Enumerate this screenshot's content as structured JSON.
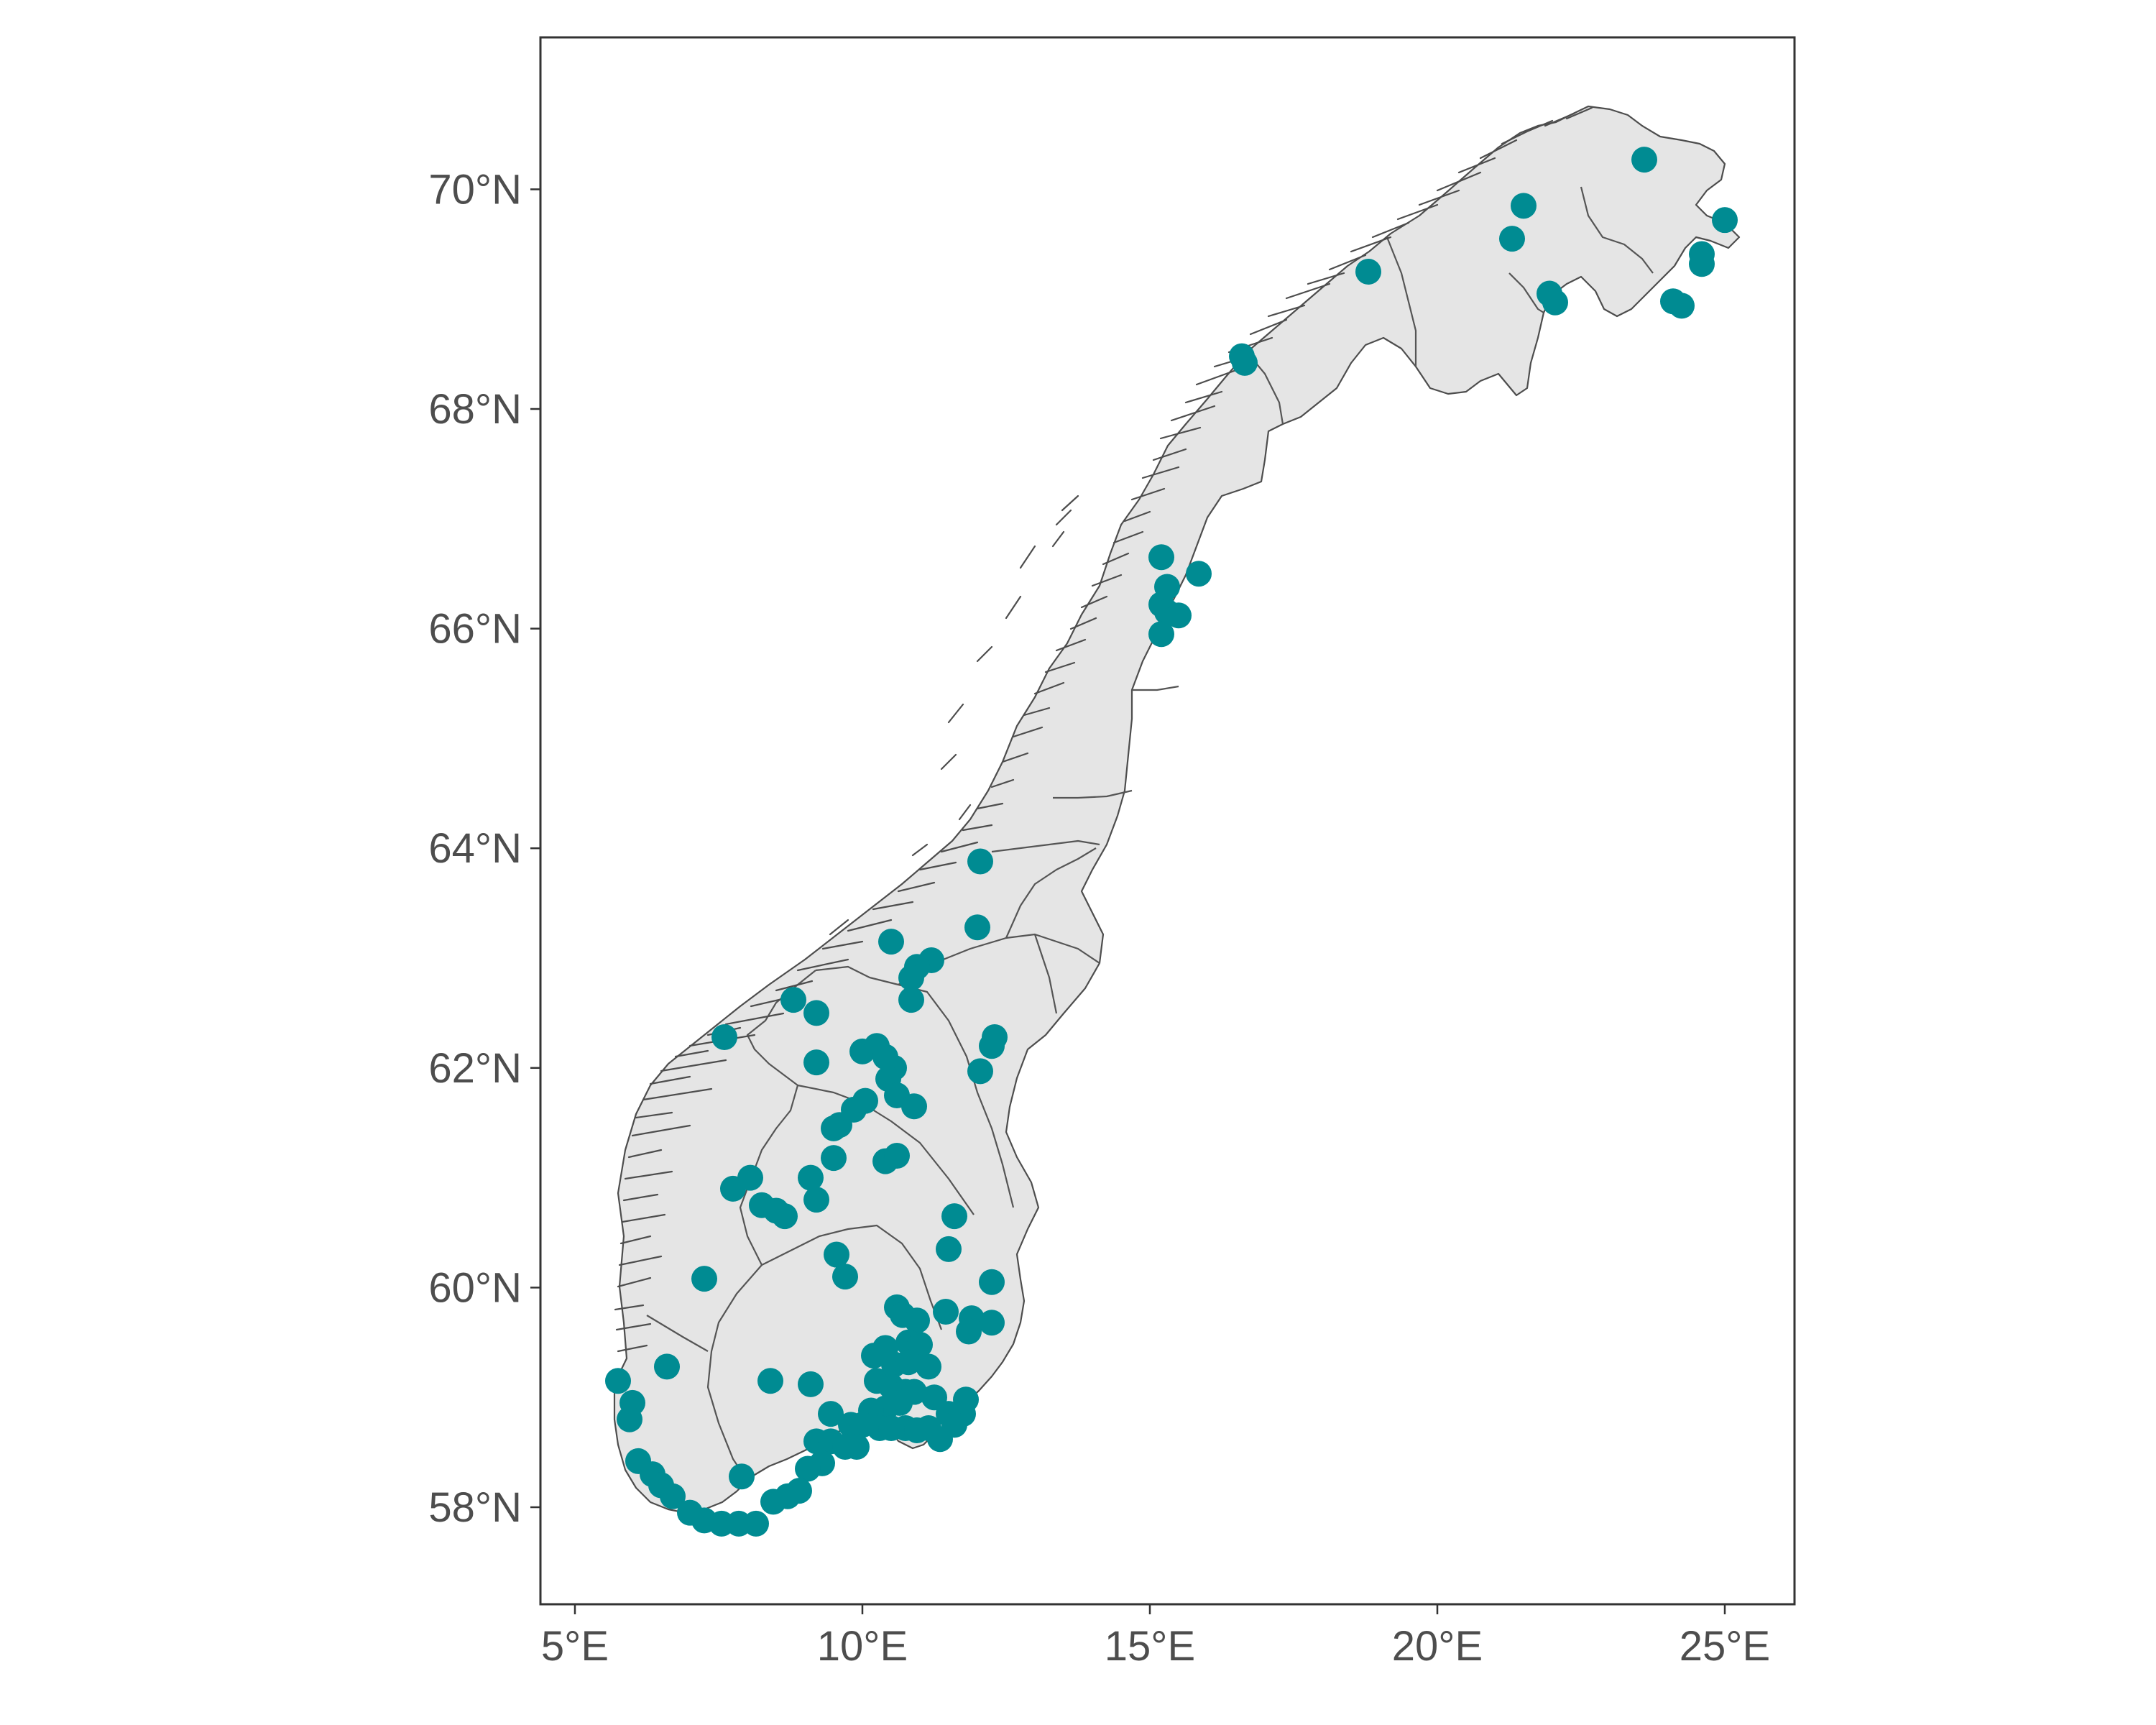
{
  "map": {
    "x_ticks": [
      {
        "value": 5,
        "label": "5°E"
      },
      {
        "value": 10,
        "label": "10°E"
      },
      {
        "value": 15,
        "label": "15°E"
      },
      {
        "value": 20,
        "label": "20°E"
      },
      {
        "value": 25,
        "label": "25°E"
      }
    ],
    "y_ticks": [
      {
        "value": 58,
        "label": "58°N"
      },
      {
        "value": 60,
        "label": "60°N"
      },
      {
        "value": 62,
        "label": "62°N"
      },
      {
        "value": 64,
        "label": "64°N"
      },
      {
        "value": 66,
        "label": "66°N"
      },
      {
        "value": 68,
        "label": "68°N"
      },
      {
        "value": 70,
        "label": "70°N"
      }
    ],
    "xlim": [
      4.4,
      26.2
    ],
    "ylim": [
      57.25,
      71.4
    ],
    "land_color": "#e5e5e5",
    "border_color": "#4d4d4d",
    "point_color": "#008b92",
    "grid": false
  },
  "chart_data": {
    "type": "scatter",
    "title": "",
    "xlabel": "",
    "ylabel": "",
    "xlim": [
      4.4,
      26.2
    ],
    "ylim": [
      57.25,
      71.4
    ],
    "points": [
      [
        23.6,
        70.27
      ],
      [
        25.0,
        69.72
      ],
      [
        24.6,
        69.41
      ],
      [
        24.6,
        69.32
      ],
      [
        24.1,
        68.98
      ],
      [
        24.25,
        68.94
      ],
      [
        21.5,
        69.85
      ],
      [
        21.3,
        69.55
      ],
      [
        21.95,
        69.05
      ],
      [
        22.05,
        68.97
      ],
      [
        18.8,
        69.25
      ],
      [
        16.6,
        68.48
      ],
      [
        16.65,
        68.42
      ],
      [
        15.2,
        66.65
      ],
      [
        15.3,
        66.38
      ],
      [
        15.2,
        66.22
      ],
      [
        15.3,
        66.15
      ],
      [
        15.5,
        66.12
      ],
      [
        15.2,
        65.95
      ],
      [
        15.85,
        66.5
      ],
      [
        12.05,
        63.88
      ],
      [
        12.0,
        63.28
      ],
      [
        10.5,
        63.15
      ],
      [
        11.2,
        62.98
      ],
      [
        10.95,
        62.92
      ],
      [
        10.85,
        62.82
      ],
      [
        10.85,
        62.62
      ],
      [
        12.3,
        62.28
      ],
      [
        12.25,
        62.2
      ],
      [
        12.05,
        61.97
      ],
      [
        8.8,
        62.62
      ],
      [
        9.2,
        62.5
      ],
      [
        7.6,
        62.28
      ],
      [
        9.2,
        62.05
      ],
      [
        10.0,
        62.15
      ],
      [
        10.25,
        62.2
      ],
      [
        10.4,
        62.1
      ],
      [
        10.55,
        62.0
      ],
      [
        10.45,
        61.9
      ],
      [
        10.6,
        61.75
      ],
      [
        10.9,
        61.65
      ],
      [
        9.85,
        61.62
      ],
      [
        10.05,
        61.7
      ],
      [
        9.6,
        61.48
      ],
      [
        9.5,
        61.45
      ],
      [
        10.4,
        61.15
      ],
      [
        10.6,
        61.2
      ],
      [
        9.1,
        61.0
      ],
      [
        9.5,
        61.18
      ],
      [
        7.75,
        60.9
      ],
      [
        8.05,
        61.0
      ],
      [
        8.25,
        60.75
      ],
      [
        8.5,
        60.7
      ],
      [
        8.65,
        60.65
      ],
      [
        9.2,
        60.8
      ],
      [
        11.6,
        60.65
      ],
      [
        11.5,
        60.35
      ],
      [
        9.55,
        60.3
      ],
      [
        9.7,
        60.1
      ],
      [
        7.25,
        60.08
      ],
      [
        12.25,
        60.05
      ],
      [
        10.6,
        59.82
      ],
      [
        10.7,
        59.75
      ],
      [
        10.95,
        59.7
      ],
      [
        11.45,
        59.78
      ],
      [
        11.9,
        59.72
      ],
      [
        12.25,
        59.68
      ],
      [
        11.85,
        59.6
      ],
      [
        10.4,
        59.45
      ],
      [
        10.8,
        59.5
      ],
      [
        11.0,
        59.48
      ],
      [
        10.2,
        59.38
      ],
      [
        10.55,
        59.3
      ],
      [
        10.8,
        59.32
      ],
      [
        11.15,
        59.28
      ],
      [
        10.25,
        59.15
      ],
      [
        10.5,
        59.1
      ],
      [
        10.75,
        59.05
      ],
      [
        10.9,
        59.05
      ],
      [
        11.25,
        59.0
      ],
      [
        11.8,
        58.98
      ],
      [
        10.65,
        58.95
      ],
      [
        10.4,
        58.9
      ],
      [
        10.15,
        58.88
      ],
      [
        11.5,
        58.85
      ],
      [
        11.75,
        58.85
      ],
      [
        11.6,
        58.75
      ],
      [
        9.45,
        58.85
      ],
      [
        9.8,
        58.75
      ],
      [
        10.0,
        58.75
      ],
      [
        10.3,
        58.72
      ],
      [
        10.5,
        58.72
      ],
      [
        10.75,
        58.72
      ],
      [
        10.95,
        58.7
      ],
      [
        11.15,
        58.72
      ],
      [
        11.35,
        58.62
      ],
      [
        9.2,
        58.6
      ],
      [
        9.45,
        58.6
      ],
      [
        9.7,
        58.55
      ],
      [
        9.9,
        58.55
      ],
      [
        9.3,
        58.4
      ],
      [
        9.05,
        58.35
      ],
      [
        8.4,
        59.15
      ],
      [
        9.1,
        59.12
      ],
      [
        5.75,
        59.15
      ],
      [
        6.0,
        58.95
      ],
      [
        5.95,
        58.8
      ],
      [
        6.6,
        59.28
      ],
      [
        6.1,
        58.42
      ],
      [
        6.35,
        58.3
      ],
      [
        6.5,
        58.2
      ],
      [
        6.7,
        58.1
      ],
      [
        7.0,
        57.95
      ],
      [
        7.25,
        57.88
      ],
      [
        7.55,
        57.85
      ],
      [
        7.85,
        57.85
      ],
      [
        8.15,
        57.85
      ],
      [
        8.45,
        58.05
      ],
      [
        8.7,
        58.1
      ],
      [
        8.9,
        58.15
      ],
      [
        7.9,
        58.28
      ]
    ]
  }
}
